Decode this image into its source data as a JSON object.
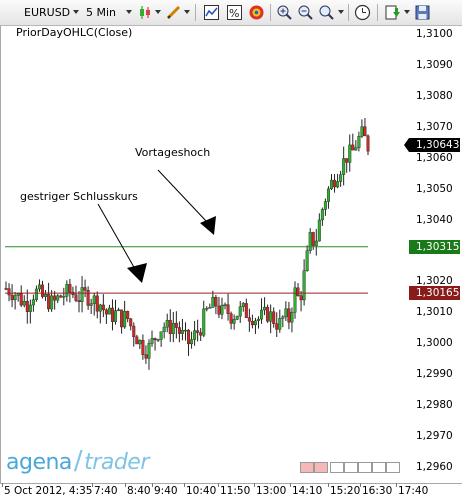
{
  "toolbar": {
    "symbol": "EURUSD",
    "timeframe": "5 Min",
    "icons": [
      "candlestick-icon",
      "pen-icon",
      "properties-icon",
      "percent-icon",
      "color-wheel-icon",
      "zoom-in-icon",
      "zoom-out-icon",
      "search-icon",
      "cursor-icon",
      "clock-icon",
      "export-icon",
      "save-icon"
    ]
  },
  "indicator_label": "PriorDayOHLC(Close)",
  "annotations": {
    "vortageshoch": "Vortageshoch",
    "schlusskurs": "gestriger Schlusskurs"
  },
  "price_scale": {
    "ticks": [
      "1,3100",
      "1,3090",
      "1,3080",
      "1,3070",
      "1,3060",
      "1,3050",
      "1,3040",
      "1,3030",
      "1,3020",
      "1,3010",
      "1,3000",
      "1,2990",
      "1,2980",
      "1,2970",
      "1,2960"
    ],
    "tag_current": "1,30643",
    "tag_high": "1,30315",
    "tag_close": "1,30165",
    "colors": {
      "current": "#000000",
      "high": "#1a7a1a",
      "close": "#8b1a1a"
    }
  },
  "time_axis": [
    "5 Oct 2012, 4:35",
    "7:40",
    "8:40",
    "9:40",
    "10:40",
    "11:50",
    "13:00",
    "14:10",
    "15:20",
    "16:30",
    "17:40"
  ],
  "logo": {
    "part1": "agena",
    "part2": "trader"
  },
  "chart_data": {
    "type": "candlestick",
    "ylim": [
      1.2955,
      1.3103
    ],
    "prior_day_high": 1.30315,
    "prior_day_close": 1.30165,
    "last_price": 1.30643,
    "close_path": [
      1.3018,
      1.3017,
      1.3016,
      1.3014,
      1.3013,
      1.3016,
      1.3017,
      1.3015,
      1.3014,
      1.3013,
      1.3015,
      1.3016,
      1.3017,
      1.3016,
      1.3015,
      1.3016,
      1.3015,
      1.3014,
      1.3013,
      1.301,
      1.3009,
      1.301,
      1.3008,
      1.3009,
      1.3005,
      1.3002,
      1.2999,
      1.2998,
      1.3001,
      1.3004,
      1.3006,
      1.3005,
      1.3007,
      1.3004,
      1.3002,
      1.3,
      1.3003,
      1.3005,
      1.301,
      1.3012,
      1.3013,
      1.301,
      1.3011,
      1.3009,
      1.301,
      1.3011,
      1.301,
      1.3009,
      1.3008,
      1.3009,
      1.301,
      1.3008,
      1.3006,
      1.3009,
      1.3008,
      1.3017,
      1.3014,
      1.3024,
      1.3034,
      1.3033,
      1.3042,
      1.3048,
      1.3052,
      1.3055,
      1.3058,
      1.3061,
      1.3062,
      1.3066,
      1.3068,
      1.3064
    ]
  }
}
